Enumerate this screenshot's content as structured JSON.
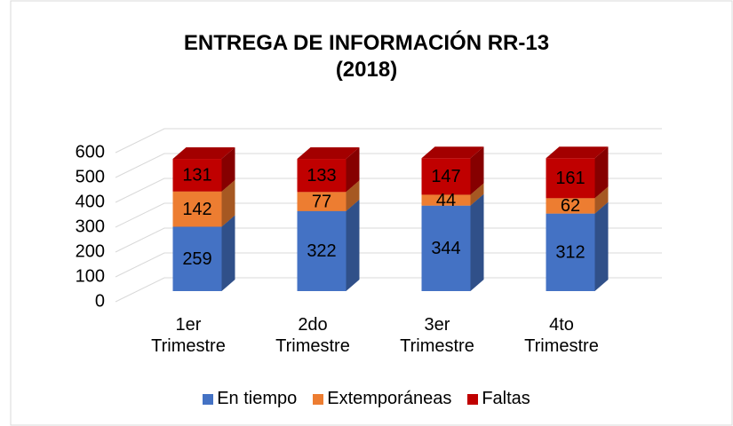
{
  "chart_data": {
    "type": "bar3d_stacked",
    "title": "ENTREGA DE INFORMACIÓN RR-13\n(2018)",
    "categories": [
      "1er Trimestre",
      "2do Trimestre",
      "3er Trimestre",
      "4to Trimestre"
    ],
    "series": [
      {
        "name": "En tiempo",
        "color": "#4472c4",
        "values": [
          259,
          322,
          344,
          312
        ]
      },
      {
        "name": "Extemporáneas",
        "color": "#ed7d31",
        "values": [
          142,
          77,
          44,
          62
        ]
      },
      {
        "name": "Faltas",
        "color": "#c00000",
        "values": [
          131,
          133,
          147,
          161
        ]
      }
    ],
    "ylim": [
      0,
      600
    ],
    "yticks": [
      0,
      100,
      200,
      300,
      400,
      500,
      600
    ],
    "grid": true,
    "legend": "bottom"
  }
}
